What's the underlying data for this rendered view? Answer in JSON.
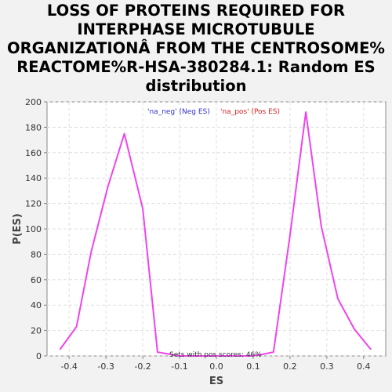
{
  "title_lines": [
    "LOSS OF PROTEINS REQUIRED FOR",
    "INTERPHASE MICROTUBULE",
    "ORGANIZATIONÂ FROM THE CENTROSOME%",
    "REACTOME%R-HSA-380284.1: Random ES",
    "distribution"
  ],
  "colors": {
    "background": "#f2f2f2",
    "plot_bg": "#ffffff",
    "line": "#ee44ee",
    "legend_neg": "#3333cc",
    "legend_pos": "#dd2222",
    "grid": "#e0e0e0"
  },
  "chart_data": {
    "type": "line",
    "title": "LOSS OF PROTEINS REQUIRED FOR INTERPHASE MICROTUBULE ORGANIZATIONÂ FROM THE CENTROSOME% REACTOME%R-HSA-380284.1: Random ES distribution",
    "xlabel": "ES",
    "ylabel": "P(ES)",
    "xlim": [
      -0.46,
      0.46
    ],
    "ylim": [
      0,
      200
    ],
    "xticks": [
      "-0.4",
      "-0.3",
      "-0.2",
      "-0.1",
      "0.0",
      "0.1",
      "0.2",
      "0.3",
      "0.4"
    ],
    "xtick_values": [
      -0.4,
      -0.3,
      -0.2,
      -0.1,
      0.0,
      0.1,
      0.2,
      0.3,
      0.4
    ],
    "yticks": [
      "0",
      "20",
      "40",
      "60",
      "80",
      "100",
      "120",
      "140",
      "160",
      "180",
      "200"
    ],
    "ytick_values": [
      0,
      20,
      40,
      60,
      80,
      100,
      120,
      140,
      160,
      180,
      200
    ],
    "grid": true,
    "legend": [
      {
        "label": "'na_neg' (Neg ES)",
        "color": "#3333cc"
      },
      {
        "label": "'na_pos' (Pos ES)",
        "color": "#dd2222"
      }
    ],
    "legend_position": "top-center",
    "annotation": "Sets with pos scores: 46%",
    "series": [
      {
        "color": "#ee44ee",
        "x": [
          -0.425,
          -0.38,
          -0.34,
          -0.295,
          -0.25,
          -0.2,
          -0.16,
          -0.1,
          -0.06,
          -0.01,
          0.04,
          0.09,
          0.12,
          0.155,
          0.2,
          0.243,
          0.285,
          0.33,
          0.375,
          0.42
        ],
        "y": [
          5,
          23,
          82,
          133,
          175,
          116,
          3,
          0,
          0,
          0,
          0,
          0,
          1,
          3,
          95,
          192,
          102,
          45,
          21,
          5
        ]
      }
    ]
  }
}
